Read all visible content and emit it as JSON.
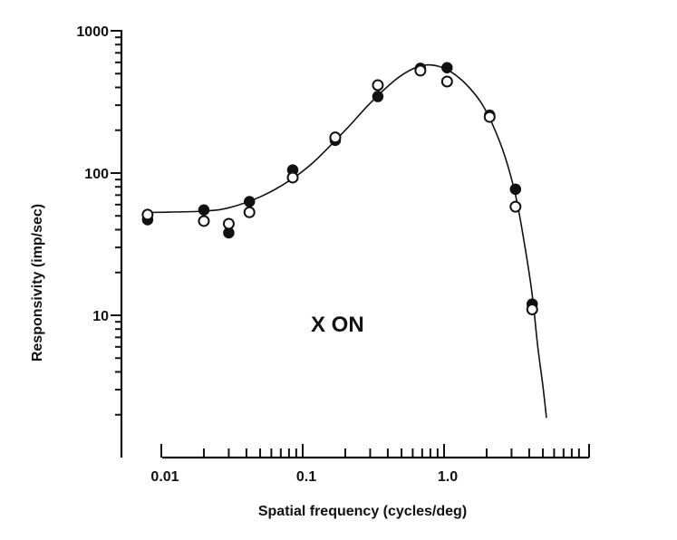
{
  "chart_data": {
    "type": "scatter",
    "title": "",
    "annotation": "X ON",
    "xlabel": "Spatial frequency  (cycles/deg)",
    "ylabel": "Responsivity  (imp/sec)",
    "x_scale": "log",
    "y_scale": "log",
    "xlim": [
      0.007,
      7
    ],
    "ylim": [
      1,
      1000
    ],
    "x_ticklabels": [
      {
        "value": 0.01,
        "label": "0.01"
      },
      {
        "value": 0.1,
        "label": "0.1"
      },
      {
        "value": 1.0,
        "label": "1.0"
      }
    ],
    "y_ticklabels": [
      {
        "value": 10,
        "label": "10"
      },
      {
        "value": 100,
        "label": "100"
      },
      {
        "value": 1000,
        "label": "1000"
      }
    ],
    "grid": false,
    "series": [
      {
        "marker": "filled-circle",
        "points": [
          [
            0.008,
            47
          ],
          [
            0.02,
            55
          ],
          [
            0.03,
            38
          ],
          [
            0.042,
            63
          ],
          [
            0.085,
            105
          ],
          [
            0.17,
            170
          ],
          [
            0.34,
            345
          ],
          [
            0.68,
            545
          ],
          [
            1.05,
            550
          ],
          [
            2.1,
            255
          ],
          [
            3.2,
            77
          ],
          [
            4.2,
            12
          ]
        ]
      },
      {
        "marker": "open-circle",
        "points": [
          [
            0.008,
            51
          ],
          [
            0.02,
            46
          ],
          [
            0.03,
            44
          ],
          [
            0.042,
            53
          ],
          [
            0.085,
            93
          ],
          [
            0.17,
            178
          ],
          [
            0.34,
            415
          ],
          [
            0.68,
            525
          ],
          [
            1.05,
            440
          ],
          [
            2.1,
            248
          ],
          [
            3.2,
            58
          ],
          [
            4.2,
            11
          ]
        ]
      },
      {
        "marker": "line",
        "points": [
          [
            0.008,
            53
          ],
          [
            0.01,
            53
          ],
          [
            0.02,
            54
          ],
          [
            0.03,
            57
          ],
          [
            0.05,
            68
          ],
          [
            0.08,
            88
          ],
          [
            0.12,
            120
          ],
          [
            0.2,
            200
          ],
          [
            0.3,
            310
          ],
          [
            0.45,
            450
          ],
          [
            0.6,
            540
          ],
          [
            0.75,
            575
          ],
          [
            0.9,
            565
          ],
          [
            1.1,
            520
          ],
          [
            1.4,
            430
          ],
          [
            1.8,
            320
          ],
          [
            2.2,
            220
          ],
          [
            2.7,
            130
          ],
          [
            3.2,
            70
          ],
          [
            3.7,
            32
          ],
          [
            4.2,
            14
          ],
          [
            4.6,
            6
          ],
          [
            5.0,
            3.2
          ],
          [
            5.3,
            1.9
          ]
        ]
      }
    ]
  }
}
